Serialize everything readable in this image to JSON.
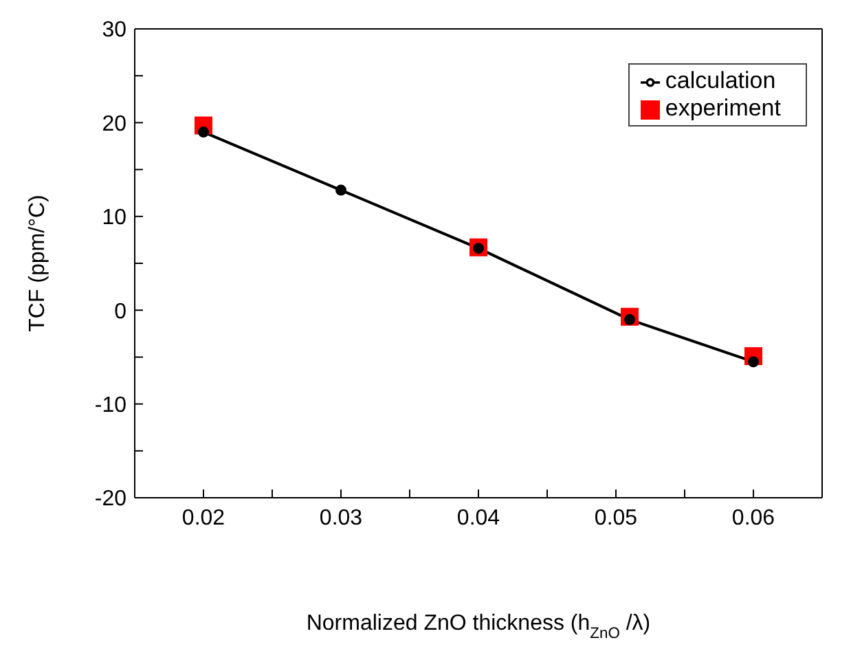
{
  "chart_data": {
    "type": "line",
    "xlabel": "Normalized ZnO thickness (h$_{ZnO}$/λ)",
    "ylabel": "TCF (ppm/°C)",
    "xlim": [
      0.015,
      0.065
    ],
    "xticks": [
      {
        "value": 0.02,
        "label": "0.02"
      },
      {
        "value": 0.025,
        "label": null
      },
      {
        "value": 0.03,
        "label": "0.03"
      },
      {
        "value": 0.035,
        "label": null
      },
      {
        "value": 0.04,
        "label": "0.04"
      },
      {
        "value": 0.045,
        "label": null
      },
      {
        "value": 0.05,
        "label": "0.05"
      },
      {
        "value": 0.055,
        "label": null
      },
      {
        "value": 0.06,
        "label": "0.06"
      }
    ],
    "ylim": [
      -20,
      30
    ],
    "yticks": [
      -20,
      {
        "value": -15,
        "label": null
      },
      -10,
      {
        "value": -5,
        "label": null
      },
      0,
      {
        "value": 5,
        "label": null
      },
      10,
      {
        "value": 15,
        "label": null
      },
      20,
      {
        "value": 25,
        "label": null
      },
      30
    ],
    "legend": "top right",
    "series": [
      {
        "name": "calculation",
        "marker": "circle",
        "line_style": "solid",
        "color": "#000000",
        "x": [
          0.02,
          0.03,
          0.04,
          0.051,
          0.06
        ],
        "values": [
          19,
          12.8,
          6.6,
          -1,
          -5.5
        ]
      },
      {
        "name": "experiment",
        "type": "scatter",
        "marker": "square",
        "color": "#ff0000",
        "x": [
          0.02,
          0.04,
          0.051,
          0.06
        ],
        "values": [
          19.7,
          6.7,
          -0.7,
          -4.9
        ]
      }
    ]
  }
}
